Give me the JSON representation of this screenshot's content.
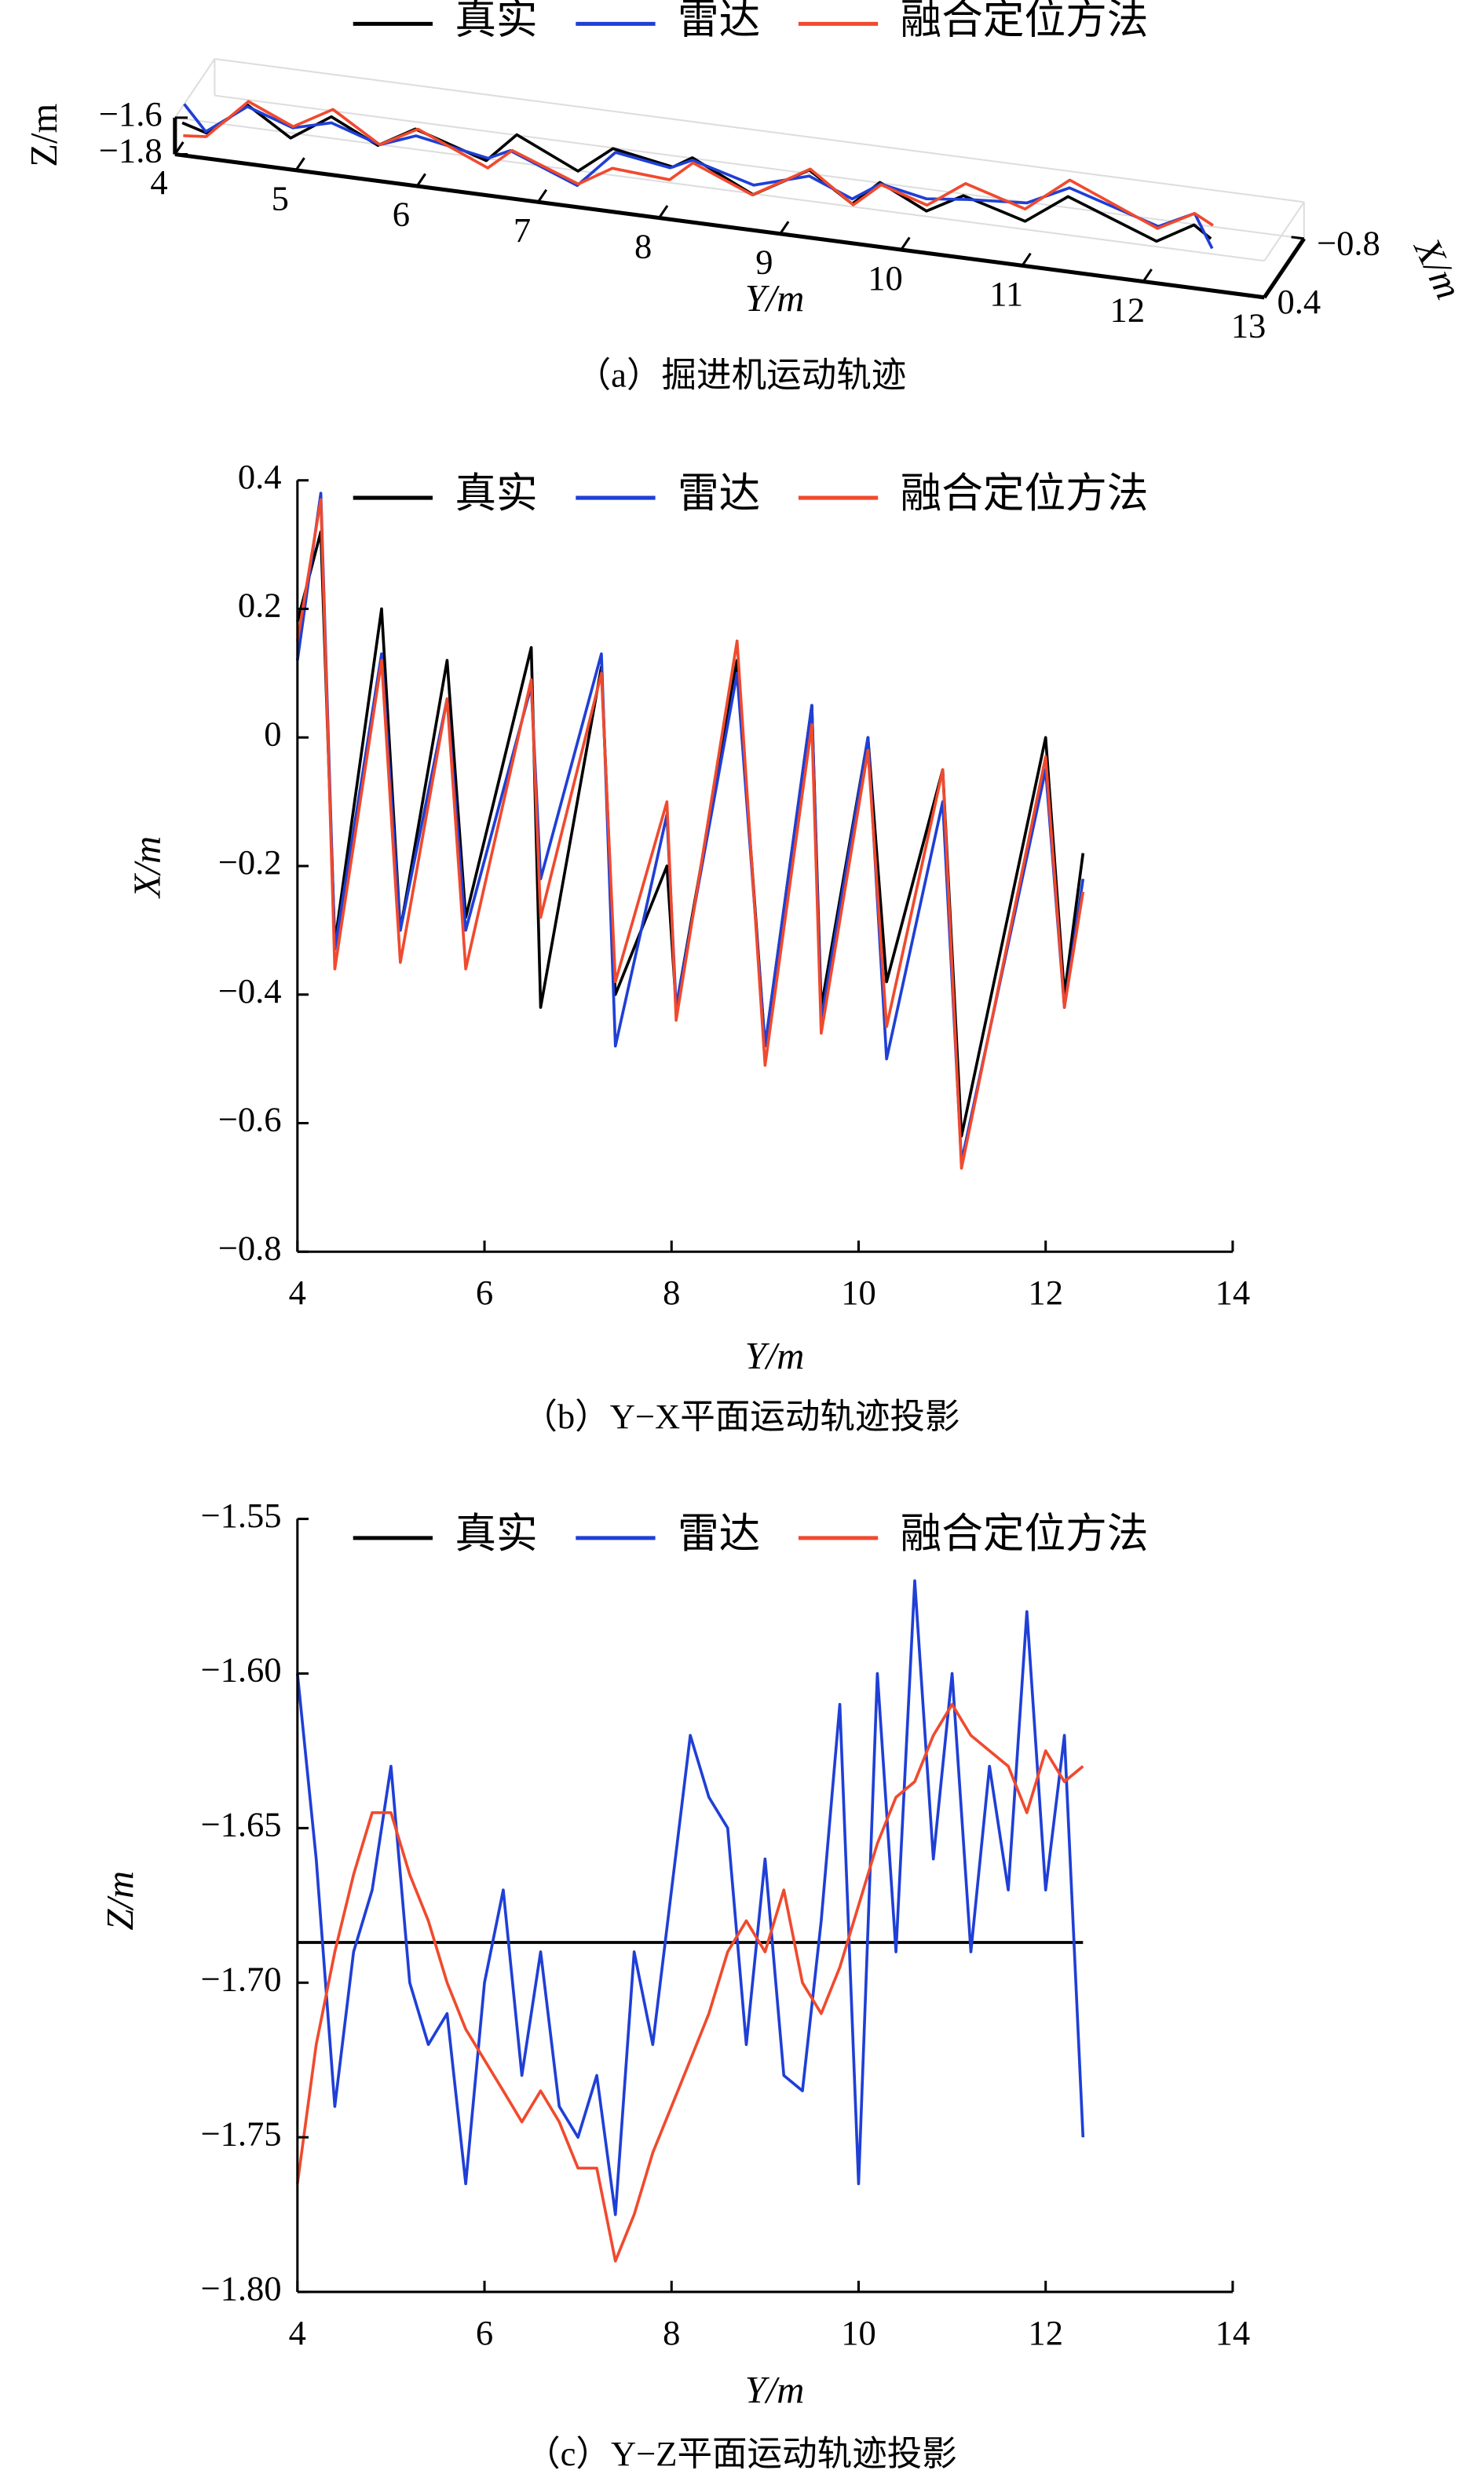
{
  "chart_data": [
    {
      "type": "line3d",
      "caption": "（a）掘进机运动轨迹",
      "legend": "top",
      "x_label": "Y/m",
      "y_label": "X/m",
      "z_label": "Z/m",
      "x": [
        4.0,
        4.25,
        4.4,
        4.9,
        5.1,
        5.6,
        5.8,
        6.5,
        6.6,
        7.25,
        7.4,
        7.95,
        8.05,
        8.7,
        9.0,
        9.5,
        9.6,
        10.1,
        10.3,
        10.9,
        11.1,
        12.0,
        12.2,
        12.4
      ],
      "xlim": [
        4,
        13
      ],
      "xticks": [
        4,
        5,
        6,
        7,
        8,
        9,
        10,
        11,
        12,
        13
      ],
      "ylim": [
        0.4,
        -0.8
      ],
      "yticks": [
        0.4,
        {
          "value": -0.8,
          "label": "−0.8"
        }
      ],
      "zlim": [
        -1.8,
        -1.6
      ],
      "zticks": [
        {
          "value": -1.6,
          "label": "−1.6"
        },
        {
          "value": -1.8,
          "label": "−1.8"
        }
      ],
      "series": [
        {
          "name": "真实",
          "color": "#000000",
          "values": [
            0.18,
            0.32,
            -0.32,
            0.2,
            -0.3,
            0.12,
            -0.28,
            0.14,
            -0.42,
            0.11,
            -0.4,
            -0.2,
            -0.42,
            0.12,
            -0.48,
            0.05,
            -0.42,
            0.0,
            -0.38,
            -0.05,
            -0.62,
            0.0,
            -0.4,
            -0.18
          ],
          "z": [
            -1.687,
            -1.687,
            -1.687,
            -1.687,
            -1.687,
            -1.687,
            -1.687,
            -1.687,
            -1.687,
            -1.687,
            -1.687,
            -1.687,
            -1.687,
            -1.687,
            -1.687,
            -1.687,
            -1.687,
            -1.687,
            -1.687,
            -1.687,
            -1.687,
            -1.687,
            -1.687,
            -1.687
          ]
        },
        {
          "name": "雷达",
          "color": "#1f3fd6",
          "values": [
            0.12,
            0.38,
            -0.33,
            0.13,
            -0.3,
            0.06,
            -0.3,
            0.08,
            -0.22,
            0.13,
            -0.48,
            -0.12,
            -0.42,
            0.1,
            -0.48,
            0.05,
            -0.44,
            0.0,
            -0.5,
            -0.1,
            -0.66,
            -0.05,
            -0.42,
            -0.22
          ],
          "z": [
            -1.6,
            -1.66,
            -1.7,
            -1.65,
            -1.72,
            -1.7,
            -1.73,
            -1.69,
            -1.72,
            -1.76,
            -1.73,
            -1.67,
            -1.7,
            -1.64,
            -1.72,
            -1.66,
            -1.7,
            -1.62,
            -1.74,
            -1.6,
            -1.65,
            -1.62,
            -1.63,
            -1.75
          ]
        },
        {
          "name": "融合定位方法",
          "color": "#f04a2e",
          "values": [
            0.15,
            0.37,
            -0.36,
            0.12,
            -0.35,
            0.06,
            -0.36,
            0.09,
            -0.28,
            0.1,
            -0.38,
            -0.1,
            -0.44,
            0.15,
            -0.51,
            0.02,
            -0.46,
            -0.02,
            -0.45,
            -0.05,
            -0.67,
            -0.03,
            -0.42,
            -0.24
          ],
          "z": [
            -1.765,
            -1.69,
            -1.68,
            -1.645,
            -1.66,
            -1.7,
            -1.71,
            -1.74,
            -1.735,
            -1.76,
            -1.79,
            -1.73,
            -1.72,
            -1.68,
            -1.69,
            -1.7,
            -1.71,
            -1.66,
            -1.64,
            -1.62,
            -1.61,
            -1.625,
            -1.63,
            -1.63
          ]
        }
      ]
    },
    {
      "type": "line",
      "caption": "（b）Y−X平面运动轨迹投影",
      "legend": "top",
      "x_label": "Y/m",
      "y_label": "X/m",
      "x": [
        4.0,
        4.25,
        4.4,
        4.9,
        5.1,
        5.6,
        5.8,
        6.5,
        6.6,
        7.25,
        7.4,
        7.95,
        8.05,
        8.7,
        9.0,
        9.5,
        9.6,
        10.1,
        10.3,
        10.9,
        11.1,
        12.0,
        12.2,
        12.4
      ],
      "xlim": [
        4,
        14
      ],
      "xticks": [
        4,
        6,
        8,
        10,
        12,
        14
      ],
      "ylim": [
        -0.8,
        0.4
      ],
      "yticks": [
        {
          "value": -0.8,
          "label": "−0.8"
        },
        {
          "value": -0.6,
          "label": "−0.6"
        },
        {
          "value": -0.4,
          "label": "−0.4"
        },
        {
          "value": -0.2,
          "label": "−0.2"
        },
        0,
        0.2,
        0.4
      ],
      "series": [
        {
          "name": "真实",
          "color": "#000000",
          "values": [
            0.18,
            0.32,
            -0.32,
            0.2,
            -0.3,
            0.12,
            -0.28,
            0.14,
            -0.42,
            0.11,
            -0.4,
            -0.2,
            -0.42,
            0.12,
            -0.48,
            0.05,
            -0.42,
            0.0,
            -0.38,
            -0.05,
            -0.62,
            0.0,
            -0.4,
            -0.18
          ]
        },
        {
          "name": "雷达",
          "color": "#1f3fd6",
          "values": [
            0.12,
            0.38,
            -0.33,
            0.13,
            -0.3,
            0.06,
            -0.3,
            0.08,
            -0.22,
            0.13,
            -0.48,
            -0.12,
            -0.42,
            0.1,
            -0.48,
            0.05,
            -0.44,
            0.0,
            -0.5,
            -0.1,
            -0.66,
            -0.05,
            -0.42,
            -0.22
          ]
        },
        {
          "name": "融合定位方法",
          "color": "#f04a2e",
          "values": [
            0.15,
            0.37,
            -0.36,
            0.12,
            -0.35,
            0.06,
            -0.36,
            0.09,
            -0.28,
            0.1,
            -0.38,
            -0.1,
            -0.44,
            0.15,
            -0.51,
            0.02,
            -0.46,
            -0.02,
            -0.45,
            -0.05,
            -0.67,
            -0.03,
            -0.42,
            -0.24
          ]
        }
      ]
    },
    {
      "type": "line",
      "caption": "（c）Y−Z平面运动轨迹投影",
      "legend": "top",
      "x_label": "Y/m",
      "y_label": "Z/m",
      "x": [
        4.0,
        4.2,
        4.4,
        4.6,
        4.8,
        5.0,
        5.2,
        5.4,
        5.6,
        5.8,
        6.0,
        6.2,
        6.4,
        6.6,
        6.8,
        7.0,
        7.2,
        7.4,
        7.6,
        7.8,
        8.0,
        8.2,
        8.4,
        8.6,
        8.8,
        9.0,
        9.2,
        9.4,
        9.6,
        9.8,
        10.0,
        10.2,
        10.4,
        10.6,
        10.8,
        11.0,
        11.2,
        11.4,
        11.6,
        11.8,
        12.0,
        12.2,
        12.4
      ],
      "xlim": [
        4,
        14
      ],
      "xticks": [
        4,
        6,
        8,
        10,
        12,
        14
      ],
      "ylim": [
        -1.8,
        -1.55
      ],
      "yticks": [
        {
          "value": -1.8,
          "label": "−1.80"
        },
        {
          "value": -1.75,
          "label": "−1.75"
        },
        {
          "value": -1.7,
          "label": "−1.70"
        },
        {
          "value": -1.65,
          "label": "−1.65"
        },
        {
          "value": -1.6,
          "label": "−1.60"
        },
        {
          "value": -1.55,
          "label": "−1.55"
        }
      ],
      "series": [
        {
          "name": "真实",
          "color": "#000000",
          "values": [
            -1.687,
            -1.687,
            -1.687,
            -1.687,
            -1.687,
            -1.687,
            -1.687,
            -1.687,
            -1.687,
            -1.687,
            -1.687,
            -1.687,
            -1.687,
            -1.687,
            -1.687,
            -1.687,
            -1.687,
            -1.687,
            -1.687,
            -1.687,
            -1.687,
            -1.687,
            -1.687,
            -1.687,
            -1.687,
            -1.687,
            -1.687,
            -1.687,
            -1.687,
            -1.687,
            -1.687,
            -1.687,
            -1.687,
            -1.687,
            -1.687,
            -1.687,
            -1.687,
            -1.687,
            -1.687,
            -1.687,
            -1.687,
            -1.687,
            -1.687
          ]
        },
        {
          "name": "雷达",
          "color": "#1f3fd6",
          "values": [
            -1.6,
            -1.66,
            -1.74,
            -1.69,
            -1.67,
            -1.63,
            -1.7,
            -1.72,
            -1.71,
            -1.765,
            -1.7,
            -1.67,
            -1.73,
            -1.69,
            -1.74,
            -1.75,
            -1.73,
            -1.775,
            -1.69,
            -1.72,
            -1.67,
            -1.62,
            -1.64,
            -1.65,
            -1.72,
            -1.66,
            -1.73,
            -1.735,
            -1.68,
            -1.61,
            -1.765,
            -1.6,
            -1.69,
            -1.57,
            -1.66,
            -1.6,
            -1.69,
            -1.63,
            -1.67,
            -1.58,
            -1.67,
            -1.62,
            -1.75
          ]
        },
        {
          "name": "融合定位方法",
          "color": "#f04a2e",
          "values": [
            -1.765,
            -1.72,
            -1.69,
            -1.665,
            -1.645,
            -1.645,
            -1.665,
            -1.68,
            -1.7,
            -1.715,
            -1.725,
            -1.735,
            -1.745,
            -1.735,
            -1.745,
            -1.76,
            -1.76,
            -1.79,
            -1.775,
            -1.755,
            -1.74,
            -1.725,
            -1.71,
            -1.69,
            -1.68,
            -1.69,
            -1.67,
            -1.7,
            -1.71,
            -1.695,
            -1.675,
            -1.655,
            -1.64,
            -1.635,
            -1.62,
            -1.61,
            -1.62,
            -1.625,
            -1.63,
            -1.645,
            -1.625,
            -1.635,
            -1.63
          ]
        }
      ]
    }
  ]
}
